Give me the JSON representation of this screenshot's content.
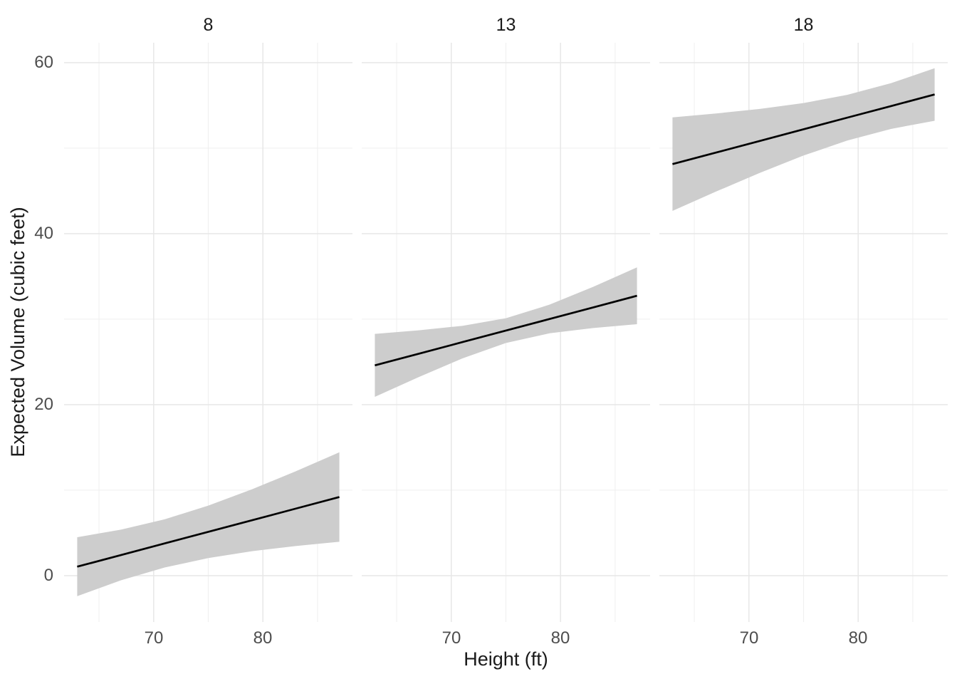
{
  "chart_data": {
    "type": "line",
    "title": "",
    "xlabel": "Height (ft)",
    "ylabel": "Expected Volume (cubic feet)",
    "facet_titles": [
      "8",
      "13",
      "18"
    ],
    "xticks": [
      70,
      80
    ],
    "yticks": [
      0,
      20,
      40,
      60
    ],
    "x_minor": [
      65,
      75,
      85
    ],
    "y_minor": [
      10,
      30,
      50
    ],
    "xlim": [
      61.8,
      88.2
    ],
    "ylim": [
      -5.42,
      62.33
    ],
    "grid": "major and minor, light grey, no axis lines or tick marks",
    "legend_position": "none",
    "band_color": "#cdcdcd",
    "line_color": "#000000",
    "major_grid_color": "#e8e8e8",
    "minor_grid_color": "#f0f0f0",
    "tick_label_color": "#4d4d4d",
    "x": [
      63,
      67,
      71,
      75,
      79,
      83,
      87
    ],
    "panels": [
      {
        "facet": "8",
        "fit": [
          1.05,
          2.41,
          3.77,
          5.13,
          6.48,
          7.84,
          9.2
        ],
        "lower": [
          -2.4,
          -0.55,
          0.95,
          2.06,
          2.86,
          3.47,
          3.97
        ],
        "upper": [
          4.5,
          5.38,
          6.59,
          8.19,
          10.1,
          12.21,
          14.43
        ]
      },
      {
        "facet": "13",
        "fit": [
          24.6,
          25.95,
          27.31,
          28.67,
          30.02,
          31.38,
          32.74
        ],
        "lower": [
          20.91,
          23.22,
          25.4,
          27.22,
          28.35,
          28.97,
          29.41
        ],
        "upper": [
          28.28,
          28.69,
          29.22,
          30.11,
          31.7,
          33.79,
          36.06
        ]
      },
      {
        "facet": "18",
        "fit": [
          48.14,
          49.49,
          50.85,
          52.21,
          53.57,
          54.92,
          56.28
        ],
        "lower": [
          42.66,
          44.93,
          47.11,
          49.14,
          50.89,
          52.25,
          53.21
        ],
        "upper": [
          53.6,
          54.06,
          54.59,
          55.28,
          56.24,
          57.6,
          59.35
        ]
      }
    ]
  }
}
